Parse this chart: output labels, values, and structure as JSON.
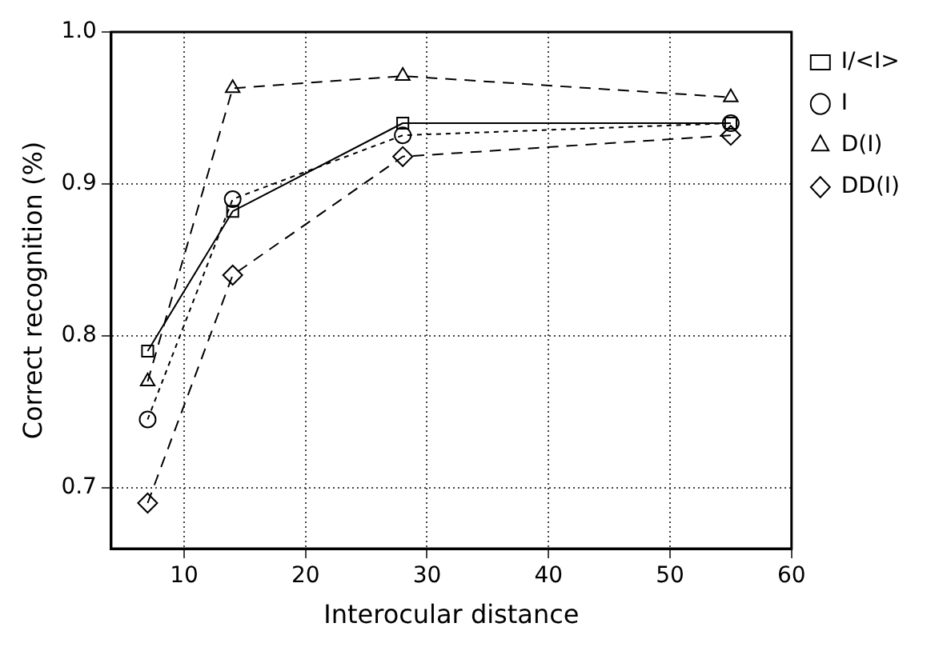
{
  "chart_data": {
    "type": "line",
    "xlabel": "Interocular distance",
    "ylabel": "Correct recognition (%)",
    "xlim": [
      4,
      60
    ],
    "xticks": [
      10,
      20,
      30,
      40,
      50,
      60
    ],
    "ylim": [
      0.66,
      1.0
    ],
    "yticks": [
      {
        "value": 0.7,
        "label": "0.7"
      },
      {
        "value": 0.8,
        "label": "0.8"
      },
      {
        "value": 0.9,
        "label": "0.9"
      },
      {
        "value": 1.0,
        "label": "1.0"
      }
    ],
    "grid": true,
    "legend": "right",
    "series": [
      {
        "name": "I/<I>",
        "color": "#000000",
        "x": [
          7,
          14,
          28,
          55
        ],
        "values": [
          0.79,
          0.882,
          0.94,
          0.94
        ],
        "marker": "square",
        "line_style": "solid"
      },
      {
        "name": "I",
        "color": "#000000",
        "x": [
          7,
          14,
          28,
          55
        ],
        "values": [
          0.745,
          0.89,
          0.932,
          0.94
        ],
        "marker": "circle",
        "line_style": "dotted"
      },
      {
        "name": "D(I)",
        "color": "#000000",
        "x": [
          7,
          14,
          28,
          55
        ],
        "values": [
          0.77,
          0.963,
          0.971,
          0.957
        ],
        "marker": "triangle",
        "line_style": "dashed"
      },
      {
        "name": "DD(I)",
        "color": "#000000",
        "x": [
          7,
          14,
          28,
          55
        ],
        "values": [
          0.69,
          0.84,
          0.918,
          0.932
        ],
        "marker": "diamond",
        "line_style": "dashed"
      }
    ]
  }
}
